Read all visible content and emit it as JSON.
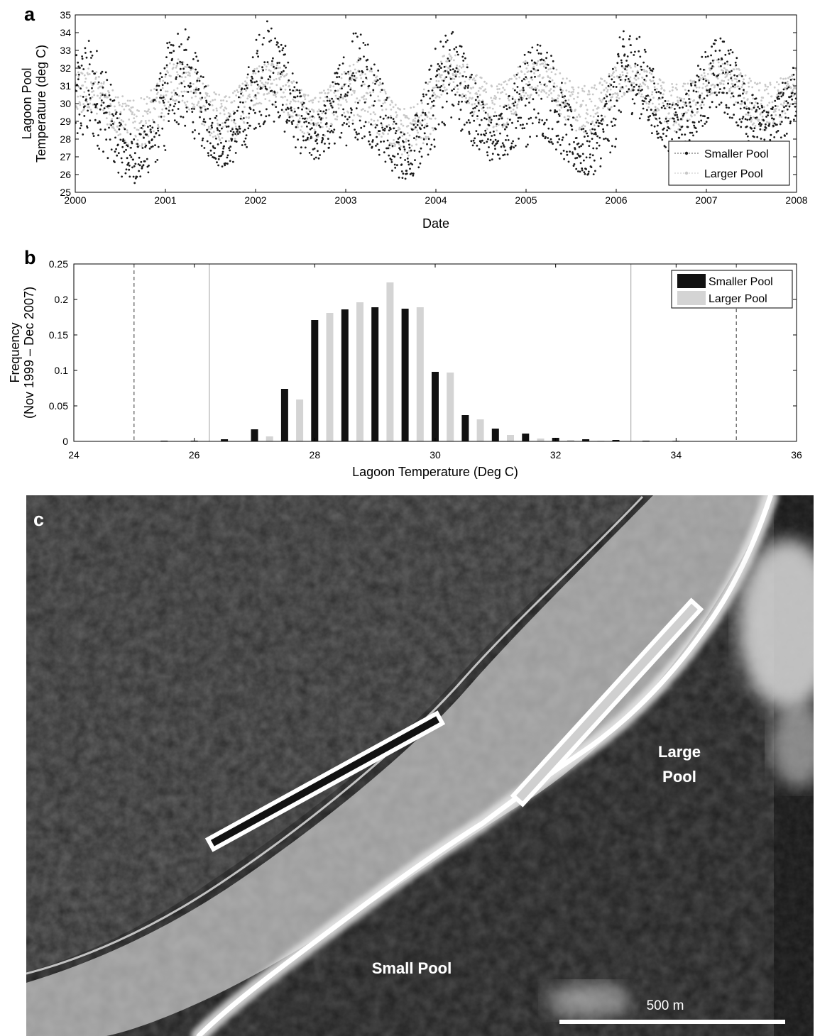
{
  "chart_data": [
    {
      "panel": "a",
      "type": "scatter",
      "xlabel": "Date",
      "ylabel_lines": [
        "Lagoon Pool",
        "Temperature (deg C)"
      ],
      "xlim": [
        2000,
        2008
      ],
      "ylim": [
        25,
        35
      ],
      "xticks": [
        "2000",
        "2001",
        "2002",
        "2003",
        "2004",
        "2005",
        "2006",
        "2007",
        "2008"
      ],
      "yticks": [
        "25",
        "26",
        "27",
        "28",
        "29",
        "30",
        "31",
        "32",
        "33",
        "34",
        "35"
      ],
      "legend": {
        "position": "bottom-right",
        "entries": [
          "Smaller Pool",
          "Larger Pool"
        ]
      },
      "grid": false,
      "series": [
        {
          "name": "Smaller Pool",
          "color": "#1a1a1a",
          "marker": "dot",
          "summer_peak_max": [
            33.7,
            34.5,
            34.8,
            34.6,
            34.4,
            33.8,
            34.3,
            33.8
          ],
          "winter_min": [
            25.1,
            26.0,
            26.3,
            25.3,
            26.2,
            25.4,
            26.8,
            26.8
          ]
        },
        {
          "name": "Larger Pool",
          "color": "#c8c8c8",
          "marker": "dot",
          "summer_peak_max": [
            32.0,
            32.5,
            32.3,
            32.6,
            32.8,
            32.5,
            32.2,
            32.5
          ],
          "winter_min": [
            27.0,
            27.3,
            27.4,
            26.5,
            28.0,
            27.8,
            27.9,
            28.0
          ]
        }
      ]
    },
    {
      "panel": "b",
      "type": "bar",
      "xlabel": "Lagoon Temperature (Deg C)",
      "ylabel_lines": [
        "Frequency",
        "(Nov 1999 – Dec 2007)"
      ],
      "xlim": [
        24,
        36
      ],
      "ylim": [
        0,
        0.25
      ],
      "xticks": [
        "24",
        "26",
        "28",
        "30",
        "32",
        "34",
        "36"
      ],
      "yticks": [
        "0",
        "0.05",
        "0.1",
        "0.15",
        "0.2",
        "0.25"
      ],
      "legend": {
        "position": "top-right",
        "entries": [
          "Smaller Pool",
          "Larger Pool"
        ]
      },
      "grid": false,
      "reference_lines": {
        "dashed": [
          25,
          35
        ],
        "solid_gray": [
          26.25,
          33.25
        ]
      },
      "series": [
        {
          "name": "Smaller Pool",
          "color": "#111111",
          "x": [
            25.0,
            25.5,
            26.0,
            26.5,
            27.0,
            27.5,
            28.0,
            28.5,
            29.0,
            29.5,
            30.0,
            30.5,
            31.0,
            31.5,
            32.0,
            32.5,
            33.0,
            33.5,
            34.0,
            34.5,
            35.0,
            35.5
          ],
          "values": [
            0.0005,
            0.001,
            0.001,
            0.003,
            0.017,
            0.074,
            0.171,
            0.186,
            0.189,
            0.187,
            0.098,
            0.037,
            0.018,
            0.011,
            0.005,
            0.003,
            0.002,
            0.001,
            0.0008,
            0.0005,
            0.0005,
            0.0003
          ]
        },
        {
          "name": "Larger Pool",
          "color": "#d4d4d4",
          "x": [
            25.25,
            25.75,
            26.25,
            26.75,
            27.25,
            27.75,
            28.25,
            28.75,
            29.25,
            29.75,
            30.25,
            30.75,
            31.25,
            31.75,
            32.25,
            32.75,
            33.25,
            33.75,
            34.25,
            34.75,
            35.25
          ],
          "values": [
            0.0,
            0.0,
            0.0,
            0.0,
            0.007,
            0.059,
            0.181,
            0.196,
            0.224,
            0.189,
            0.097,
            0.031,
            0.009,
            0.004,
            0.002,
            0.001,
            0.0,
            0.0,
            0.0,
            0.0,
            0.0
          ]
        }
      ]
    }
  ],
  "panel_c": {
    "letter": "c",
    "label_large": [
      "Large",
      "Pool"
    ],
    "label_small": "Small Pool",
    "scale_label": "500 m",
    "small_pool_fill": "#111111",
    "large_pool_fill": "#cfcfcf"
  }
}
